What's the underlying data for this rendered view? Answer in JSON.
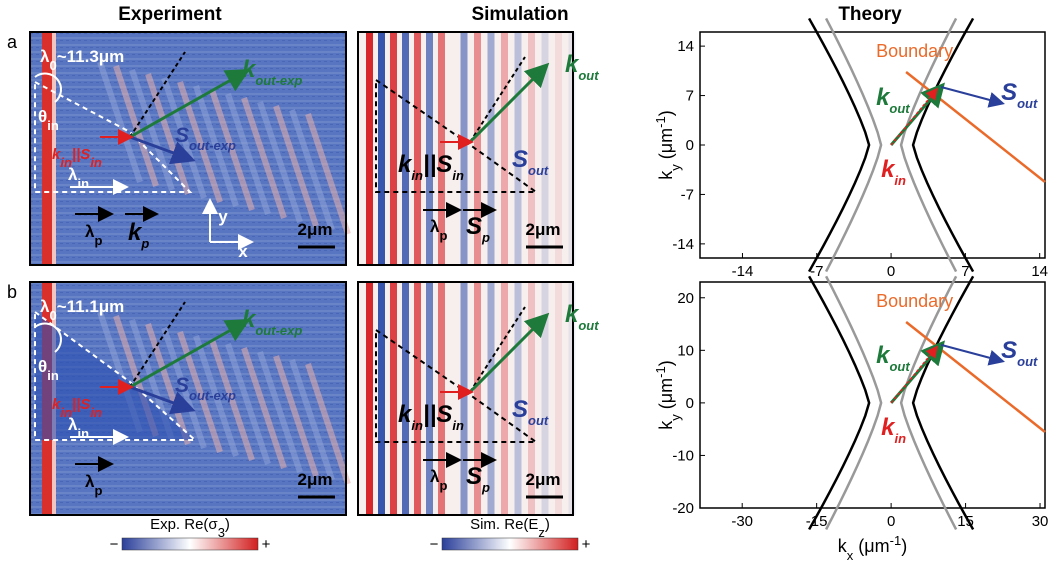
{
  "headers": [
    "Experiment",
    "Simulation",
    "Theory"
  ],
  "panels": [
    {
      "label": "a",
      "experiment": {
        "wavelength": [
          "λ",
          "0",
          "~11.3μm"
        ],
        "angle": [
          "θ",
          "in"
        ],
        "k_out": [
          "k",
          "out-exp"
        ],
        "s_out": [
          "S",
          "out-exp"
        ],
        "k_in_s_in": [
          "k",
          "in",
          "||S",
          "in"
        ],
        "lambda_in": [
          "λ",
          "in"
        ],
        "lambda_p": [
          "λ",
          "p"
        ],
        "k_p": [
          "k",
          "p"
        ],
        "axis_y": "y",
        "axis_x": "x",
        "scale": "2μm"
      },
      "simulation": {
        "k_out": [
          "k",
          "out"
        ],
        "s_out": [
          "S",
          "out"
        ],
        "k_in_s_in": [
          "k",
          "in",
          "||S",
          "in"
        ],
        "lambda_p": [
          "λ",
          "p"
        ],
        "s_p": [
          "S",
          "p"
        ],
        "scale": "2μm"
      },
      "theory": {
        "boundary": "Boundary",
        "k_out": [
          "k",
          "out"
        ],
        "s_out": [
          "S",
          "out"
        ],
        "k_in": [
          "k",
          "in"
        ],
        "xlim": [
          -18,
          14.5
        ],
        "xticks": [
          -14,
          -7,
          0,
          7,
          14
        ],
        "ylim": [
          -16,
          16
        ],
        "yticks": [
          -14,
          -7,
          0,
          7,
          14
        ],
        "ylabel": {
          "var": "k",
          "sub": "y",
          "unit": " (μm",
          "exp": "-1",
          "close": ")"
        }
      }
    },
    {
      "label": "b",
      "experiment": {
        "wavelength": [
          "λ",
          "0",
          "~11.1μm"
        ],
        "angle": [
          "θ",
          "in"
        ],
        "k_out": [
          "k",
          "out-exp"
        ],
        "s_out": [
          "S",
          "out-exp"
        ],
        "k_in_s_in": [
          "k",
          "in",
          "||S",
          "in"
        ],
        "lambda_in": [
          "λ",
          "in"
        ],
        "lambda_p": [
          "λ",
          "p"
        ],
        "scale": "2μm"
      },
      "simulation": {
        "k_out": [
          "k",
          "out"
        ],
        "s_out": [
          "S",
          "out"
        ],
        "k_in_s_in": [
          "k",
          "in",
          "||S",
          "in"
        ],
        "lambda_p": [
          "λ",
          "p"
        ],
        "s_p": [
          "S",
          "p"
        ],
        "scale": "2μm"
      },
      "theory": {
        "boundary": "Boundary",
        "k_out": [
          "k",
          "out"
        ],
        "s_out": [
          "S",
          "out"
        ],
        "k_in": [
          "k",
          "in"
        ],
        "xlim": [
          -38.5,
          31
        ],
        "xticks": [
          -30,
          -15,
          0,
          15,
          30
        ],
        "ylim": [
          -20,
          23
        ],
        "yticks": [
          -20,
          -10,
          0,
          10,
          20
        ],
        "ylabel": {
          "var": "k",
          "sub": "y",
          "unit": " (μm",
          "exp": "-1",
          "close": ")"
        },
        "xlabel": {
          "var": "k",
          "sub": "x",
          "unit": " (μm",
          "exp": "-1",
          "close": ")"
        }
      }
    }
  ],
  "colorbars": [
    {
      "label": [
        "Exp. Re(σ",
        "3",
        ")"
      ],
      "min": "−",
      "max": "+"
    },
    {
      "label": [
        "Sim. Re(E",
        "z",
        ")"
      ],
      "min": "−",
      "max": "+"
    }
  ]
}
